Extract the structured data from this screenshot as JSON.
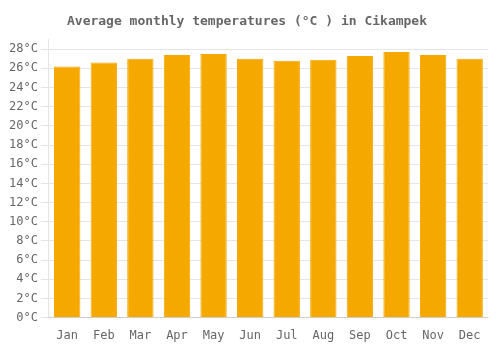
{
  "chart_data": {
    "type": "bar",
    "title": "Average monthly temperatures (°C ) in Cikampek",
    "categories": [
      "Jan",
      "Feb",
      "Mar",
      "Apr",
      "May",
      "Jun",
      "Jul",
      "Aug",
      "Sep",
      "Oct",
      "Nov",
      "Dec"
    ],
    "values": [
      26.2,
      26.6,
      27.0,
      27.4,
      27.5,
      27.0,
      26.8,
      26.9,
      27.3,
      27.7,
      27.4,
      27.0
    ],
    "color": "#F5A800",
    "ylim": [
      0,
      29
    ],
    "yticks": [
      {
        "value": 0,
        "label": "0°C"
      },
      {
        "value": 2,
        "label": "2°C"
      },
      {
        "value": 4,
        "label": "4°C"
      },
      {
        "value": 6,
        "label": "6°C"
      },
      {
        "value": 8,
        "label": "8°C"
      },
      {
        "value": 10,
        "label": "10°C"
      },
      {
        "value": 12,
        "label": "12°C"
      },
      {
        "value": 14,
        "label": "14°C"
      },
      {
        "value": 16,
        "label": "16°C"
      },
      {
        "value": 18,
        "label": "18°C"
      },
      {
        "value": 20,
        "label": "20°C"
      },
      {
        "value": 22,
        "label": "22°C"
      },
      {
        "value": 24,
        "label": "24°C"
      },
      {
        "value": 26,
        "label": "26°C"
      },
      {
        "value": 28,
        "label": "28°C"
      }
    ],
    "grid": true
  }
}
